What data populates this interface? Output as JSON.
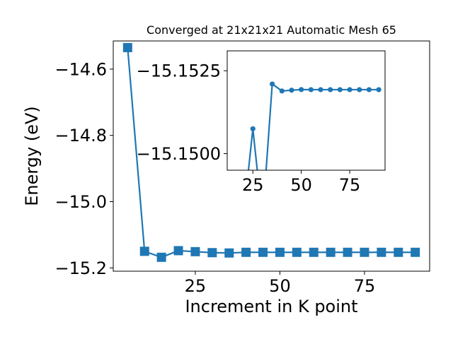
{
  "chart_data": [
    {
      "type": "line",
      "title": "Converged at 21x21x21 Automatic Mesh 65",
      "xlabel": "Increment in K point",
      "ylabel": "Energy (eV)",
      "xlim": [
        0.75,
        94.25
      ],
      "ylim": [
        -15.21,
        -14.515
      ],
      "xticks": [
        25,
        50,
        75
      ],
      "xtick_labels": [
        "25",
        "50",
        "75"
      ],
      "yticks": [
        -15.2,
        -15.0,
        -14.8,
        -14.6
      ],
      "ytick_labels": [
        "−15.2",
        "−15.0",
        "−14.8",
        "−14.6"
      ],
      "marker": "square",
      "color": "#1f77b4",
      "series": [
        {
          "x": [
            5,
            10,
            15,
            20,
            25,
            30,
            35,
            40,
            45,
            50,
            55,
            60,
            65,
            70,
            75,
            80,
            85,
            90
          ],
          "y": [
            -14.535,
            -15.15,
            -15.168,
            -15.148,
            -15.151,
            -15.154,
            -15.155,
            -15.153,
            -15.153,
            -15.153,
            -15.153,
            -15.153,
            -15.153,
            -15.153,
            -15.153,
            -15.153,
            -15.153,
            -15.153
          ]
        }
      ]
    },
    {
      "type": "line",
      "title": "",
      "xlabel": "",
      "ylabel": "",
      "xlim": [
        11.75,
        93.25
      ],
      "ylim": [
        -15.1495,
        -15.1531
      ],
      "xticks": [
        25,
        50,
        75
      ],
      "xtick_labels": [
        "25",
        "50",
        "75"
      ],
      "yticks": [
        -15.1525,
        -15.15
      ],
      "ytick_labels": [
        "−15.1525",
        "−15.1500"
      ],
      "marker": "circle",
      "color": "#1f77b4",
      "series": [
        {
          "x": [
            20,
            25,
            30,
            35,
            40,
            45,
            50,
            55,
            60,
            65,
            70,
            75,
            80,
            85,
            90
          ],
          "y": [
            -15.148,
            -15.15075,
            -15.148,
            -15.1521,
            -15.15189,
            -15.151913,
            -15.151932,
            -15.15193,
            -15.15193,
            -15.15193,
            -15.15193,
            -15.15193,
            -15.15193,
            -15.15193,
            -15.15193
          ]
        }
      ]
    }
  ]
}
